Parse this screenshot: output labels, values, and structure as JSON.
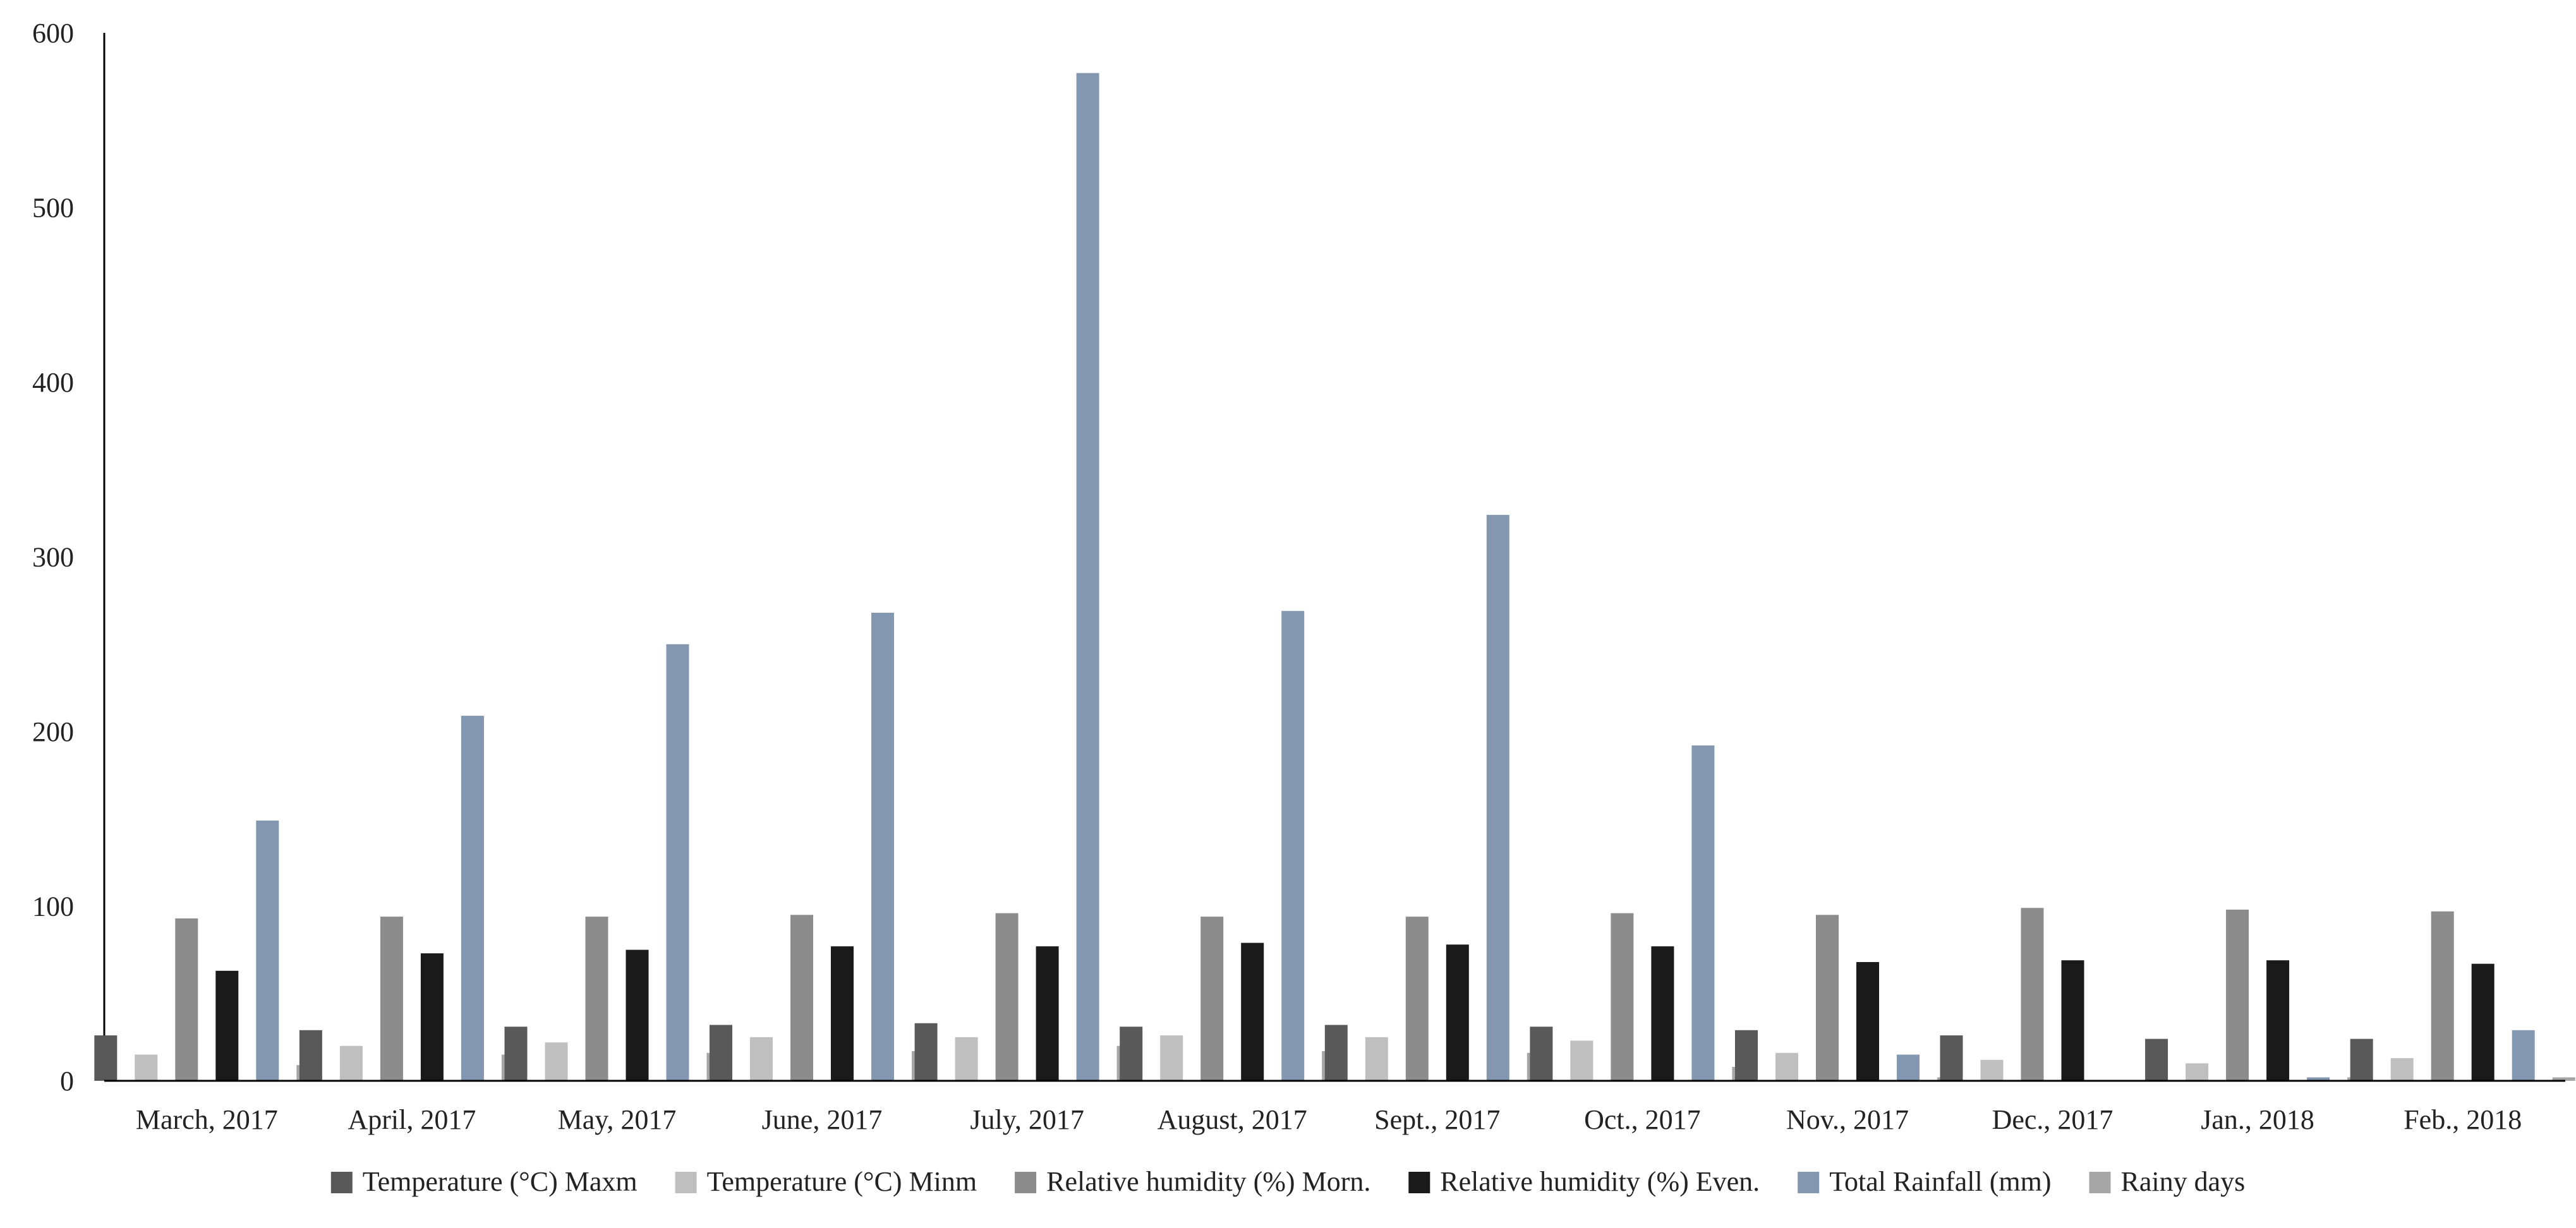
{
  "chart_data": {
    "type": "bar",
    "title": "",
    "xlabel": "",
    "ylabel": "",
    "ylim": [
      0,
      600
    ],
    "yticks": [
      0,
      100,
      200,
      300,
      400,
      500,
      600
    ],
    "grid": false,
    "legend_position": "bottom",
    "categories": [
      "March, 2017",
      "April, 2017",
      "May, 2017",
      "June, 2017",
      "July, 2017",
      "August, 2017",
      "Sept., 2017",
      "Oct., 2017",
      "Nov., 2017",
      "Dec., 2017",
      "Jan., 2018",
      "Feb., 2018"
    ],
    "series": [
      {
        "name": "Temperature (°C) Maxm",
        "color": "#595959",
        "values": [
          26,
          29,
          31,
          32,
          33,
          31,
          32,
          31,
          29,
          26,
          24,
          24
        ]
      },
      {
        "name": "Temperature (°C) Minm",
        "color": "#bfbfbf",
        "values": [
          15,
          20,
          22,
          25,
          25,
          26,
          25,
          23,
          16,
          12,
          10,
          13
        ]
      },
      {
        "name": "Relative humidity (%) Morn.",
        "color": "#8c8c8c",
        "values": [
          93,
          94,
          94,
          95,
          96,
          94,
          94,
          96,
          95,
          99,
          98,
          97
        ]
      },
      {
        "name": "Relative humidity (%) Even.",
        "color": "#1a1a1a",
        "values": [
          63,
          73,
          75,
          77,
          77,
          79,
          78,
          77,
          68,
          69,
          69,
          67
        ]
      },
      {
        "name": "Total Rainfall (mm)",
        "color": "#8497b0",
        "values": [
          149,
          209,
          250,
          268,
          577,
          269,
          324,
          192,
          15,
          0,
          2,
          29
        ]
      },
      {
        "name": "Rainy days",
        "color": "#a6a6a6",
        "values": [
          9,
          15,
          16,
          17,
          20,
          17,
          16,
          8,
          2,
          0,
          2,
          2
        ]
      }
    ]
  }
}
